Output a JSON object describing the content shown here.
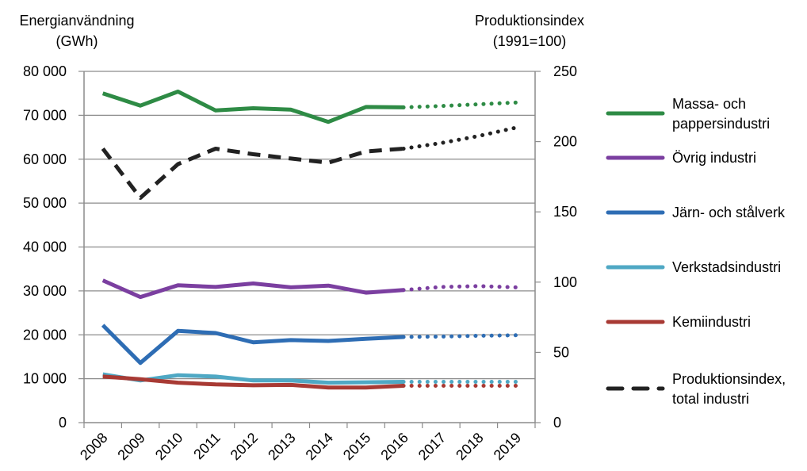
{
  "chart_data": {
    "type": "line",
    "left_axis_title": [
      "Energianvändning",
      "(GWh)"
    ],
    "right_axis_title": [
      "Produktionsindex",
      "(1991=100)"
    ],
    "categories": [
      "2008",
      "2009",
      "2010",
      "2011",
      "2012",
      "2013",
      "2014",
      "2015",
      "2016",
      "2017",
      "2018",
      "2019"
    ],
    "y_left": {
      "min": 0,
      "max": 80000,
      "ticks": [
        "0",
        "10 000",
        "20 000",
        "30 000",
        "40 000",
        "50 000",
        "60 000",
        "70 000",
        "80 000"
      ]
    },
    "y_right": {
      "min": 0,
      "max": 250,
      "ticks": [
        "0",
        "50",
        "100",
        "150",
        "200",
        "250"
      ]
    },
    "grid": true,
    "legend_position": "right",
    "series": [
      {
        "name": "Massa- och pappersindustri",
        "label_lines": [
          "Massa- och",
          "pappersindustri"
        ],
        "color": "#2e8b45",
        "axis": "left",
        "dash": false,
        "values": [
          75000,
          72200,
          75400,
          71100,
          71600,
          71300,
          68500,
          71900,
          71800,
          72100,
          72500,
          72900
        ]
      },
      {
        "name": "Övrig industri",
        "label_lines": [
          "Övrig industri"
        ],
        "color": "#7b3fa0",
        "axis": "left",
        "dash": false,
        "values": [
          32400,
          28600,
          31300,
          30900,
          31700,
          30800,
          31200,
          29600,
          30200,
          30900,
          31100,
          30800
        ]
      },
      {
        "name": "Järn- och stålverk",
        "label_lines": [
          "Järn- och stålverk"
        ],
        "color": "#2e6db4",
        "axis": "left",
        "dash": false,
        "values": [
          22200,
          13600,
          20900,
          20400,
          18300,
          18800,
          18600,
          19100,
          19500,
          19600,
          19800,
          19900
        ]
      },
      {
        "name": "Verkstadsindustri",
        "label_lines": [
          "Verkstadsindustri"
        ],
        "color": "#4fa8c4",
        "axis": "left",
        "dash": false,
        "values": [
          11000,
          9600,
          10800,
          10500,
          9600,
          9600,
          9100,
          9200,
          9300,
          9300,
          9300,
          9300
        ]
      },
      {
        "name": "Kemiindustri",
        "label_lines": [
          "Kemiindustri"
        ],
        "color": "#a83a34",
        "axis": "left",
        "dash": false,
        "values": [
          10500,
          9900,
          9100,
          8700,
          8500,
          8600,
          8000,
          8000,
          8400,
          8400,
          8400,
          8400
        ]
      },
      {
        "name": "Produktionsindex, total industri",
        "label_lines": [
          "Produktionsindex,",
          "total industri"
        ],
        "color": "#222222",
        "axis": "right",
        "dash": true,
        "values": [
          195,
          160,
          184,
          195,
          191,
          188,
          185,
          193,
          195,
          199,
          204,
          210
        ]
      }
    ],
    "forecast_from_index": 8
  }
}
